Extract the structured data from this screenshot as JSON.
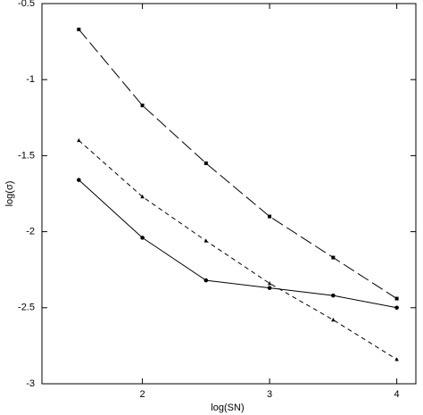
{
  "chart_data": {
    "type": "line",
    "x_label": "log(SN)",
    "y_label": "log(σ)",
    "x": [
      1.5,
      2,
      2.5,
      3,
      3.5,
      4
    ],
    "series": [
      {
        "color": "#000",
        "dash": "14 5",
        "marker": "square",
        "values": [
          -0.67,
          -1.17,
          -1.55,
          -1.9,
          -2.17,
          -2.44
        ]
      },
      {
        "color": "#000",
        "dash": "5 4",
        "marker": "triangle",
        "values": [
          -1.4,
          -1.77,
          -2.06,
          -2.34,
          -2.58,
          -2.84
        ]
      },
      {
        "color": "#000",
        "dash": "none",
        "marker": "circle",
        "values": [
          -1.66,
          -2.04,
          -2.32,
          -2.37,
          -2.42,
          -2.5
        ]
      }
    ],
    "xlim": [
      1.21,
      4.15
    ],
    "xticks": [
      2,
      3,
      4
    ],
    "ylim": [
      -3,
      -0.5
    ],
    "yticks": [
      -3,
      -2.5,
      -2,
      -1.5,
      -1,
      -0.5
    ]
  }
}
